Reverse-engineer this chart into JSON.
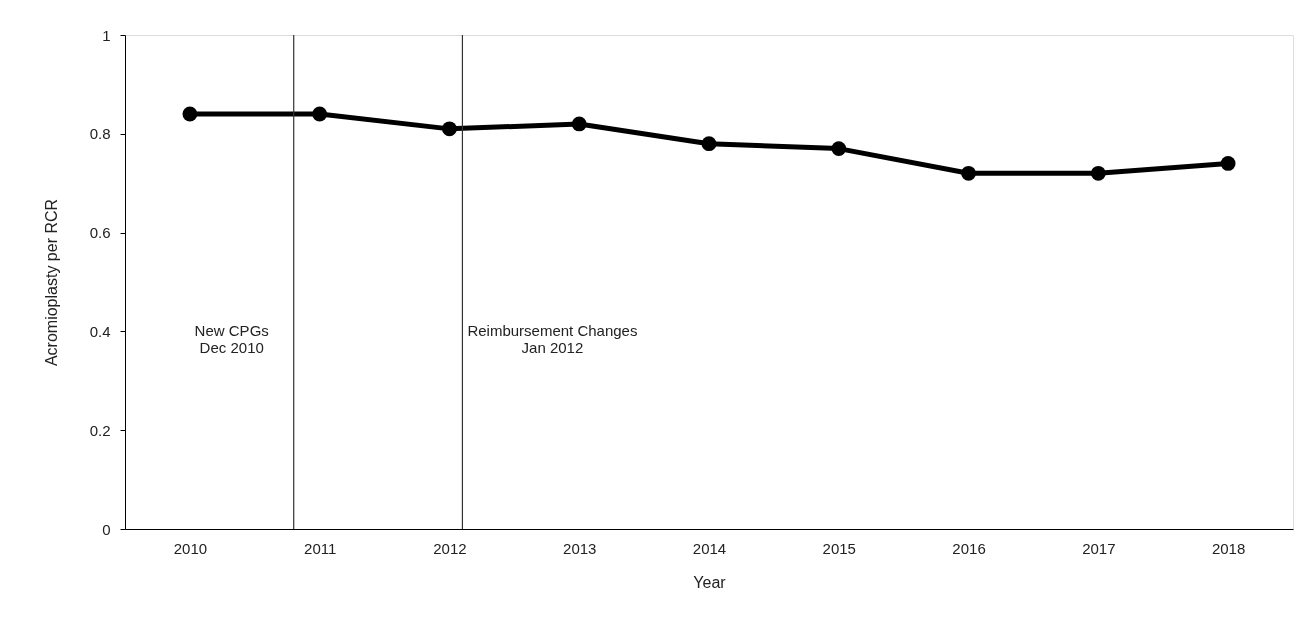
{
  "chart_data": {
    "type": "line",
    "xlabel": "Year",
    "ylabel": "Acromioplasty per RCR",
    "x": [
      2010,
      2011,
      2012,
      2013,
      2014,
      2015,
      2016,
      2017,
      2018
    ],
    "series": [
      {
        "color": "#000000",
        "values": [
          0.84,
          0.84,
          0.81,
          0.82,
          0.78,
          0.77,
          0.72,
          0.72,
          0.74
        ]
      }
    ],
    "xlim": [
      2009.5,
      2018.5
    ],
    "xticks": [
      2010,
      2011,
      2012,
      2013,
      2014,
      2015,
      2016,
      2017,
      2018
    ],
    "ylim": [
      0,
      1
    ],
    "yticks": [
      0,
      0.2,
      0.4,
      0.6,
      0.8,
      1
    ],
    "ref_lines": [
      {
        "axis": "x",
        "value": 2010.8,
        "label": "New CPGs\nDec 2010",
        "color": "#333333"
      },
      {
        "axis": "x",
        "value": 2012.1,
        "label": "Reimbursement Changes\nJan 2012",
        "color": "#333333"
      }
    ],
    "marker": "circle",
    "line_style": "solid",
    "grid": false
  }
}
